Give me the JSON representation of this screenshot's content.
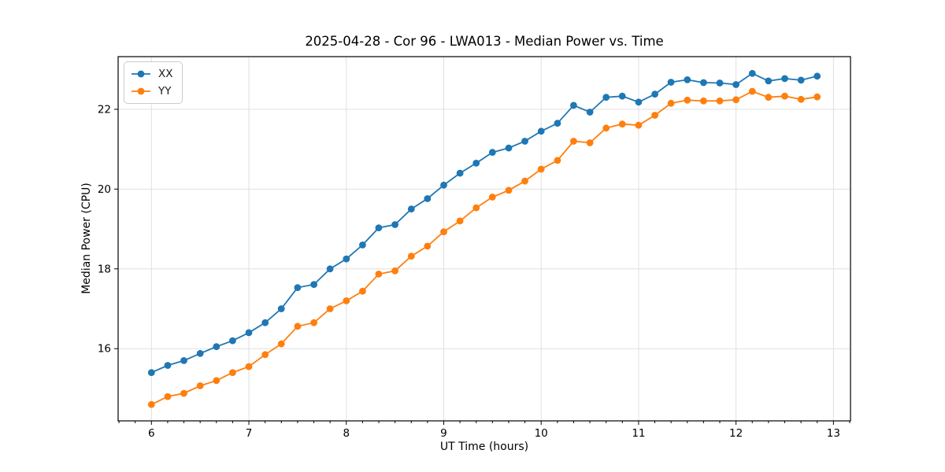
{
  "chart_data": {
    "type": "line",
    "title": "2025-04-28 - Cor 96 - LWA013 - Median Power vs. Time",
    "xlabel": "UT Time (hours)",
    "ylabel": "Median Power (CPU)",
    "xlim": [
      5.658,
      13.175
    ],
    "ylim": [
      14.19,
      23.32
    ],
    "xticks": [
      6,
      7,
      8,
      9,
      10,
      11,
      12,
      13
    ],
    "xtick_labels": [
      "6",
      "7",
      "8",
      "9",
      "10",
      "11",
      "12",
      "13"
    ],
    "yticks": [
      16,
      18,
      20,
      22
    ],
    "ytick_labels": [
      "16",
      "18",
      "20",
      "22"
    ],
    "x_minor_step": 0.1666667,
    "grid": true,
    "legend_position": "upper-left",
    "x": [
      6.0,
      6.167,
      6.333,
      6.5,
      6.667,
      6.833,
      7.0,
      7.167,
      7.333,
      7.5,
      7.667,
      7.833,
      8.0,
      8.167,
      8.333,
      8.5,
      8.667,
      8.833,
      9.0,
      9.167,
      9.333,
      9.5,
      9.667,
      9.833,
      10.0,
      10.167,
      10.333,
      10.5,
      10.667,
      10.833,
      11.0,
      11.167,
      11.333,
      11.5,
      11.667,
      11.833,
      12.0,
      12.167,
      12.333,
      12.5,
      12.667,
      12.833
    ],
    "series": [
      {
        "name": "XX",
        "color": "#1f77b4",
        "values": [
          15.4,
          15.58,
          15.7,
          15.88,
          16.05,
          16.2,
          16.4,
          16.65,
          17.0,
          17.53,
          17.61,
          18.0,
          18.25,
          18.6,
          19.03,
          19.11,
          19.5,
          19.76,
          20.1,
          20.4,
          20.65,
          20.92,
          21.03,
          21.2,
          21.45,
          21.65,
          22.1,
          21.93,
          22.3,
          22.33,
          22.18,
          22.38,
          22.68,
          22.74,
          22.67,
          22.66,
          22.62,
          22.9,
          22.71,
          22.77,
          22.73,
          22.83
        ]
      },
      {
        "name": "YY",
        "color": "#ff7f0e",
        "values": [
          14.6,
          14.8,
          14.88,
          15.07,
          15.2,
          15.4,
          15.55,
          15.85,
          16.12,
          16.56,
          16.65,
          17.0,
          17.2,
          17.44,
          17.87,
          17.95,
          18.32,
          18.57,
          18.93,
          19.2,
          19.53,
          19.8,
          19.97,
          20.2,
          20.5,
          20.72,
          21.2,
          21.16,
          21.53,
          21.63,
          21.6,
          21.85,
          22.15,
          22.23,
          22.21,
          22.21,
          22.24,
          22.45,
          22.3,
          22.33,
          22.25,
          22.31
        ]
      }
    ]
  },
  "colors": {
    "frame": "#000000",
    "grid": "#e0e0e0",
    "tick": "#000000",
    "text": "#000000",
    "background": "#ffffff"
  }
}
